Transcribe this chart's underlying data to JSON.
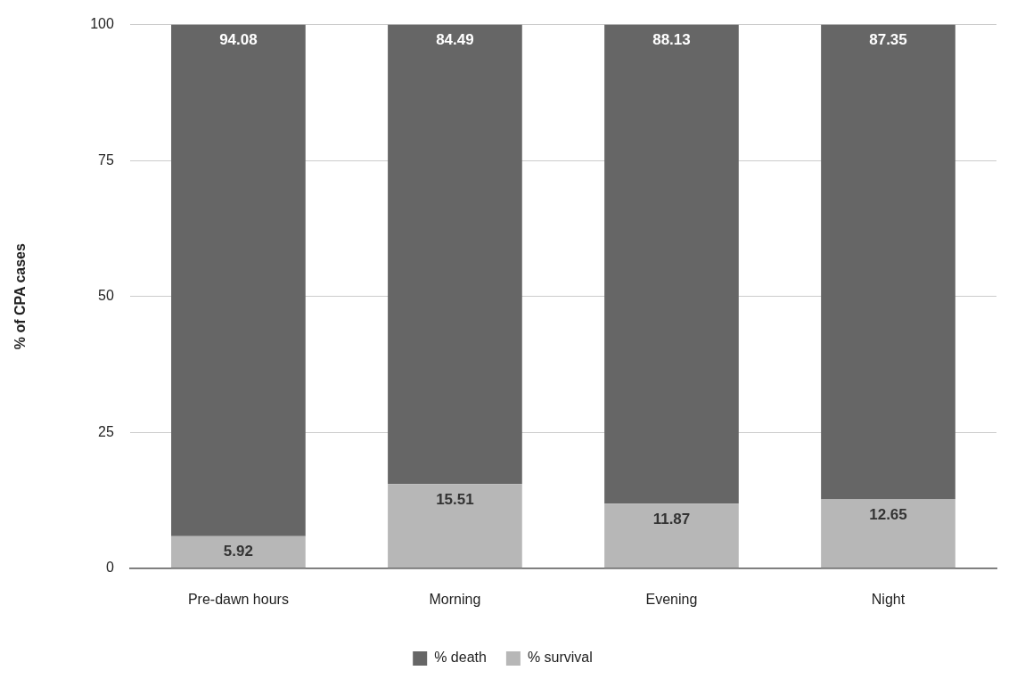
{
  "chart_data": {
    "type": "bar",
    "ylabel": "% of CPA cases",
    "categories": [
      "Pre-dawn hours",
      "Morning",
      "Evening",
      "Night"
    ],
    "series": [
      {
        "name": "% survival",
        "color": "#b7b7b7",
        "values": [
          5.92,
          15.51,
          11.87,
          12.65
        ]
      },
      {
        "name": "% death",
        "color": "#666666",
        "values": [
          94.08,
          84.49,
          88.13,
          87.35
        ]
      }
    ],
    "stacked": true,
    "ylim": [
      0,
      100
    ],
    "yticks": [
      0,
      25,
      50,
      75,
      100
    ],
    "grid": "y",
    "legend": "bottom",
    "data_labels": true
  }
}
